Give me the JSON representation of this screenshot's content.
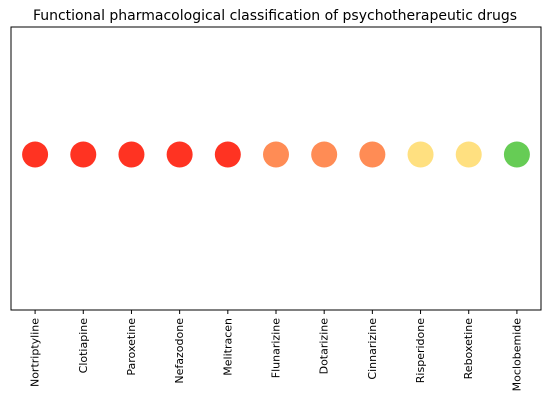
{
  "chart_data": {
    "type": "scatter",
    "title": "Functional pharmacological classification of psychotherapeutic drugs",
    "xlabel": "",
    "ylabel": "",
    "categories": [
      "Nortriptyline",
      "Clotiapine",
      "Paroxetine",
      "Nefazodone",
      "Melitracen",
      "Flunarizine",
      "Dotarizine",
      "Cinnarizine",
      "Risperidone",
      "Reboxetine",
      "Moclobemide"
    ],
    "colors": [
      "#ff3322",
      "#ff3322",
      "#ff3322",
      "#ff3322",
      "#ff3322",
      "#ff8c55",
      "#ff8c55",
      "#ff8c55",
      "#ffe080",
      "#ffe080",
      "#66cc55"
    ],
    "grid": false,
    "legend": "none",
    "show_y_ticks": false
  }
}
